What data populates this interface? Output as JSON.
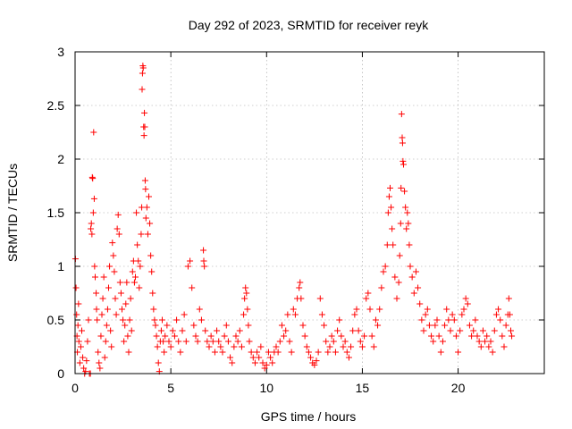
{
  "chart_data": {
    "type": "scatter",
    "title": "Day 292 of 2023, SRMTID for receiver reyk",
    "xlabel": "GPS time / hours",
    "ylabel": "SRMTID / TECUs",
    "xlim": [
      0,
      24.5
    ],
    "ylim": [
      0,
      3
    ],
    "xticks": [
      0,
      5,
      10,
      15,
      20
    ],
    "xtick_labels": [
      "0",
      "5",
      "10",
      "15",
      "20"
    ],
    "yticks": [
      0,
      0.5,
      1,
      1.5,
      2,
      2.5,
      3
    ],
    "ytick_labels": [
      "0",
      "0.5",
      "1",
      "1.5",
      "2",
      "2.5",
      "3"
    ],
    "grid": true,
    "marker": "+",
    "series": [
      {
        "name": "SRMTID",
        "color": "#ff0000",
        "points": [
          [
            0.02,
            1.07
          ],
          [
            0.05,
            0.8
          ],
          [
            0.08,
            0.55
          ],
          [
            0.1,
            0.35
          ],
          [
            0.12,
            0.2
          ],
          [
            0.15,
            0.45
          ],
          [
            0.18,
            0.65
          ],
          [
            0.2,
            0.3
          ],
          [
            0.25,
            0.1
          ],
          [
            0.3,
            0.25
          ],
          [
            0.35,
            0.4
          ],
          [
            0.4,
            0.15
          ],
          [
            0.45,
            0.05
          ],
          [
            0.5,
            0.0
          ],
          [
            0.55,
            0.02
          ],
          [
            0.6,
            0.12
          ],
          [
            0.65,
            0.3
          ],
          [
            0.7,
            0.5
          ],
          [
            0.75,
            0.0
          ],
          [
            0.8,
            0.0
          ],
          [
            0.82,
            1.35
          ],
          [
            0.85,
            1.4
          ],
          [
            0.88,
            1.3
          ],
          [
            0.9,
            1.83
          ],
          [
            0.92,
            1.82
          ],
          [
            0.95,
            1.5
          ],
          [
            0.97,
            2.25
          ],
          [
            1.0,
            1.63
          ],
          [
            1.02,
            1.0
          ],
          [
            1.05,
            0.9
          ],
          [
            1.1,
            0.75
          ],
          [
            1.12,
            0.6
          ],
          [
            1.15,
            0.5
          ],
          [
            1.2,
            0.2
          ],
          [
            1.25,
            0.1
          ],
          [
            1.3,
            0.05
          ],
          [
            1.35,
            0.35
          ],
          [
            1.4,
            0.55
          ],
          [
            1.45,
            0.7
          ],
          [
            1.5,
            0.9
          ],
          [
            1.55,
            0.15
          ],
          [
            1.6,
            0.3
          ],
          [
            1.65,
            0.45
          ],
          [
            1.7,
            0.6
          ],
          [
            1.75,
            0.8
          ],
          [
            1.8,
            1.0
          ],
          [
            1.85,
            0.4
          ],
          [
            1.9,
            0.25
          ],
          [
            1.95,
            1.22
          ],
          [
            2.0,
            1.1
          ],
          [
            2.05,
            0.95
          ],
          [
            2.1,
            0.7
          ],
          [
            2.15,
            0.55
          ],
          [
            2.2,
            1.35
          ],
          [
            2.25,
            1.48
          ],
          [
            2.3,
            1.3
          ],
          [
            2.35,
            0.85
          ],
          [
            2.4,
            0.75
          ],
          [
            2.45,
            0.6
          ],
          [
            2.5,
            0.5
          ],
          [
            2.55,
            0.3
          ],
          [
            2.6,
            0.45
          ],
          [
            2.65,
            0.65
          ],
          [
            2.7,
            0.85
          ],
          [
            2.75,
            0.35
          ],
          [
            2.8,
            0.2
          ],
          [
            2.85,
            0.5
          ],
          [
            2.9,
            0.7
          ],
          [
            2.95,
            0.4
          ],
          [
            3.0,
            0.95
          ],
          [
            3.05,
            1.05
          ],
          [
            3.1,
            0.85
          ],
          [
            3.15,
            0.9
          ],
          [
            3.2,
            1.5
          ],
          [
            3.25,
            1.2
          ],
          [
            3.3,
            1.05
          ],
          [
            3.35,
            0.8
          ],
          [
            3.4,
            1.0
          ],
          [
            3.45,
            1.3
          ],
          [
            3.48,
            1.55
          ],
          [
            3.5,
            2.65
          ],
          [
            3.52,
            2.8
          ],
          [
            3.54,
            2.87
          ],
          [
            3.56,
            2.85
          ],
          [
            3.58,
            2.3
          ],
          [
            3.6,
            2.22
          ],
          [
            3.62,
            2.43
          ],
          [
            3.64,
            2.3
          ],
          [
            3.66,
            1.8
          ],
          [
            3.68,
            1.72
          ],
          [
            3.7,
            1.45
          ],
          [
            3.75,
            1.55
          ],
          [
            3.8,
            1.3
          ],
          [
            3.85,
            1.65
          ],
          [
            3.9,
            1.4
          ],
          [
            3.95,
            1.1
          ],
          [
            4.0,
            0.95
          ],
          [
            4.05,
            0.75
          ],
          [
            4.1,
            0.6
          ],
          [
            4.15,
            0.5
          ],
          [
            4.2,
            0.45
          ],
          [
            4.25,
            0.35
          ],
          [
            4.3,
            0.25
          ],
          [
            4.35,
            0.1
          ],
          [
            4.4,
            0.02
          ],
          [
            4.45,
            0.3
          ],
          [
            4.5,
            0.4
          ],
          [
            4.55,
            0.5
          ],
          [
            4.6,
            0.3
          ],
          [
            4.65,
            0.2
          ],
          [
            4.7,
            0.35
          ],
          [
            4.8,
            0.45
          ],
          [
            4.9,
            0.3
          ],
          [
            5.0,
            0.25
          ],
          [
            5.1,
            0.4
          ],
          [
            5.2,
            0.35
          ],
          [
            5.3,
            0.5
          ],
          [
            5.4,
            0.3
          ],
          [
            5.5,
            0.2
          ],
          [
            5.6,
            0.4
          ],
          [
            5.7,
            0.55
          ],
          [
            5.8,
            0.3
          ],
          [
            5.9,
            1.0
          ],
          [
            6.0,
            1.05
          ],
          [
            6.1,
            0.8
          ],
          [
            6.2,
            0.45
          ],
          [
            6.3,
            0.35
          ],
          [
            6.4,
            0.3
          ],
          [
            6.5,
            0.6
          ],
          [
            6.6,
            0.5
          ],
          [
            6.7,
            1.15
          ],
          [
            6.72,
            1.05
          ],
          [
            6.75,
            1.0
          ],
          [
            6.8,
            0.4
          ],
          [
            6.9,
            0.3
          ],
          [
            7.0,
            0.25
          ],
          [
            7.1,
            0.35
          ],
          [
            7.2,
            0.3
          ],
          [
            7.3,
            0.2
          ],
          [
            7.4,
            0.4
          ],
          [
            7.5,
            0.3
          ],
          [
            7.6,
            0.25
          ],
          [
            7.7,
            0.2
          ],
          [
            7.8,
            0.35
          ],
          [
            7.9,
            0.45
          ],
          [
            8.0,
            0.3
          ],
          [
            8.1,
            0.15
          ],
          [
            8.2,
            0.1
          ],
          [
            8.3,
            0.25
          ],
          [
            8.4,
            0.35
          ],
          [
            8.5,
            0.3
          ],
          [
            8.6,
            0.4
          ],
          [
            8.7,
            0.25
          ],
          [
            8.8,
            0.55
          ],
          [
            8.85,
            0.7
          ],
          [
            8.9,
            0.8
          ],
          [
            8.95,
            0.75
          ],
          [
            9.0,
            0.6
          ],
          [
            9.05,
            0.45
          ],
          [
            9.1,
            0.3
          ],
          [
            9.2,
            0.2
          ],
          [
            9.3,
            0.15
          ],
          [
            9.4,
            0.1
          ],
          [
            9.5,
            0.2
          ],
          [
            9.6,
            0.15
          ],
          [
            9.7,
            0.25
          ],
          [
            9.8,
            0.1
          ],
          [
            9.9,
            0.05
          ],
          [
            10.0,
            0.08
          ],
          [
            10.1,
            0.2
          ],
          [
            10.2,
            0.15
          ],
          [
            10.3,
            0.1
          ],
          [
            10.4,
            0.2
          ],
          [
            10.5,
            0.25
          ],
          [
            10.6,
            0.2
          ],
          [
            10.7,
            0.3
          ],
          [
            10.8,
            0.45
          ],
          [
            10.9,
            0.35
          ],
          [
            11.0,
            0.4
          ],
          [
            11.1,
            0.55
          ],
          [
            11.2,
            0.3
          ],
          [
            11.3,
            0.2
          ],
          [
            11.4,
            0.6
          ],
          [
            11.5,
            0.55
          ],
          [
            11.6,
            0.7
          ],
          [
            11.7,
            0.8
          ],
          [
            11.75,
            0.85
          ],
          [
            11.8,
            0.7
          ],
          [
            11.9,
            0.45
          ],
          [
            12.0,
            0.35
          ],
          [
            12.1,
            0.25
          ],
          [
            12.2,
            0.2
          ],
          [
            12.3,
            0.15
          ],
          [
            12.4,
            0.1
          ],
          [
            12.5,
            0.08
          ],
          [
            12.6,
            0.12
          ],
          [
            12.7,
            0.2
          ],
          [
            12.8,
            0.7
          ],
          [
            12.9,
            0.55
          ],
          [
            13.0,
            0.45
          ],
          [
            13.1,
            0.3
          ],
          [
            13.2,
            0.2
          ],
          [
            13.3,
            0.25
          ],
          [
            13.4,
            0.35
          ],
          [
            13.5,
            0.3
          ],
          [
            13.6,
            0.2
          ],
          [
            13.7,
            0.4
          ],
          [
            13.8,
            0.5
          ],
          [
            13.9,
            0.35
          ],
          [
            14.0,
            0.25
          ],
          [
            14.1,
            0.3
          ],
          [
            14.2,
            0.2
          ],
          [
            14.3,
            0.15
          ],
          [
            14.4,
            0.25
          ],
          [
            14.5,
            0.4
          ],
          [
            14.6,
            0.55
          ],
          [
            14.7,
            0.6
          ],
          [
            14.8,
            0.4
          ],
          [
            14.9,
            0.3
          ],
          [
            15.0,
            0.25
          ],
          [
            15.1,
            0.35
          ],
          [
            15.2,
            0.7
          ],
          [
            15.3,
            0.75
          ],
          [
            15.4,
            0.6
          ],
          [
            15.5,
            0.35
          ],
          [
            15.6,
            0.25
          ],
          [
            15.7,
            0.5
          ],
          [
            15.8,
            0.45
          ],
          [
            15.9,
            0.6
          ],
          [
            16.0,
            0.8
          ],
          [
            16.1,
            0.95
          ],
          [
            16.2,
            1.0
          ],
          [
            16.3,
            1.2
          ],
          [
            16.35,
            1.5
          ],
          [
            16.4,
            1.65
          ],
          [
            16.45,
            1.73
          ],
          [
            16.5,
            1.55
          ],
          [
            16.55,
            1.35
          ],
          [
            16.6,
            1.2
          ],
          [
            16.7,
            0.9
          ],
          [
            16.8,
            0.7
          ],
          [
            16.9,
            0.85
          ],
          [
            16.95,
            1.1
          ],
          [
            17.0,
            1.4
          ],
          [
            17.02,
            1.73
          ],
          [
            17.05,
            2.42
          ],
          [
            17.08,
            2.2
          ],
          [
            17.1,
            2.15
          ],
          [
            17.12,
            1.98
          ],
          [
            17.15,
            1.95
          ],
          [
            17.2,
            1.7
          ],
          [
            17.25,
            1.55
          ],
          [
            17.3,
            1.35
          ],
          [
            17.35,
            1.5
          ],
          [
            17.4,
            1.4
          ],
          [
            17.45,
            1.2
          ],
          [
            17.5,
            1.0
          ],
          [
            17.6,
            0.9
          ],
          [
            17.7,
            0.75
          ],
          [
            17.8,
            0.95
          ],
          [
            17.9,
            0.8
          ],
          [
            18.0,
            0.65
          ],
          [
            18.1,
            0.5
          ],
          [
            18.2,
            0.4
          ],
          [
            18.3,
            0.55
          ],
          [
            18.4,
            0.6
          ],
          [
            18.5,
            0.45
          ],
          [
            18.6,
            0.35
          ],
          [
            18.7,
            0.3
          ],
          [
            18.8,
            0.45
          ],
          [
            18.9,
            0.5
          ],
          [
            19.0,
            0.35
          ],
          [
            19.1,
            0.2
          ],
          [
            19.2,
            0.3
          ],
          [
            19.3,
            0.45
          ],
          [
            19.4,
            0.6
          ],
          [
            19.5,
            0.5
          ],
          [
            19.6,
            0.4
          ],
          [
            19.7,
            0.55
          ],
          [
            19.8,
            0.5
          ],
          [
            19.9,
            0.35
          ],
          [
            20.0,
            0.2
          ],
          [
            20.1,
            0.4
          ],
          [
            20.2,
            0.55
          ],
          [
            20.3,
            0.6
          ],
          [
            20.4,
            0.7
          ],
          [
            20.5,
            0.65
          ],
          [
            20.6,
            0.45
          ],
          [
            20.7,
            0.35
          ],
          [
            20.8,
            0.4
          ],
          [
            20.9,
            0.5
          ],
          [
            21.0,
            0.35
          ],
          [
            21.1,
            0.3
          ],
          [
            21.2,
            0.25
          ],
          [
            21.3,
            0.4
          ],
          [
            21.4,
            0.3
          ],
          [
            21.5,
            0.35
          ],
          [
            21.6,
            0.25
          ],
          [
            21.7,
            0.3
          ],
          [
            21.8,
            0.2
          ],
          [
            21.9,
            0.4
          ],
          [
            22.0,
            0.55
          ],
          [
            22.1,
            0.6
          ],
          [
            22.2,
            0.5
          ],
          [
            22.3,
            0.35
          ],
          [
            22.4,
            0.25
          ],
          [
            22.5,
            0.45
          ],
          [
            22.6,
            0.55
          ],
          [
            22.65,
            0.7
          ],
          [
            22.7,
            0.55
          ],
          [
            22.75,
            0.4
          ],
          [
            22.8,
            0.35
          ]
        ]
      }
    ]
  }
}
